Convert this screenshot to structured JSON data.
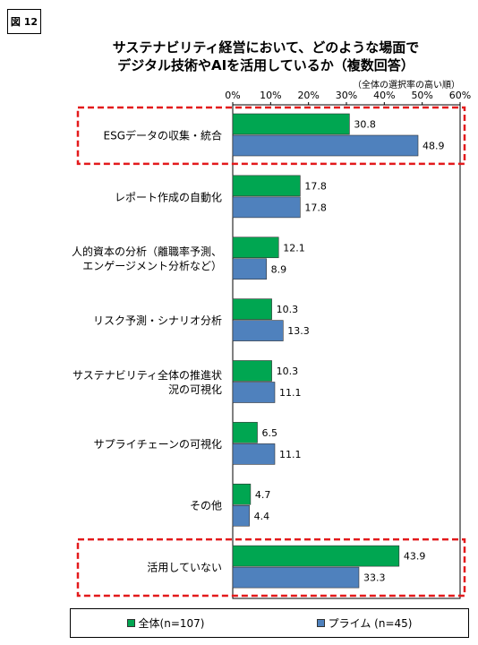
{
  "figure_label": "図 12",
  "chart_data": {
    "type": "bar",
    "orientation": "horizontal",
    "title_line1": "サステナビリティ経営において、どのような場面で",
    "title_line2": "デジタル技術やAIを活用しているか（複数回答）",
    "note": "（全体の選択率の高い順）",
    "xlim": [
      0,
      60
    ],
    "x_ticks": [
      "0%",
      "10%",
      "20%",
      "30%",
      "40%",
      "50%",
      "60%"
    ],
    "categories": [
      [
        "ESGデータの収集・統合"
      ],
      [
        "レポート作成の自動化"
      ],
      [
        "人的資本の分析（離職率予測、",
        "エンゲージメント分析など）"
      ],
      [
        "リスク予測・シナリオ分析"
      ],
      [
        "サステナビリティ全体の推進状",
        "況の可視化"
      ],
      [
        "サプライチェーンの可視化"
      ],
      [
        "その他"
      ],
      [
        "活用していない"
      ]
    ],
    "series": [
      {
        "name": "全体(n=107)",
        "color": "#00a651",
        "values": [
          30.8,
          17.8,
          12.1,
          10.3,
          10.3,
          6.5,
          4.7,
          43.9
        ]
      },
      {
        "name": "プライム (n=45)",
        "color": "#4f81bd",
        "values": [
          48.9,
          17.8,
          8.9,
          13.3,
          11.1,
          11.1,
          4.4,
          33.3
        ]
      }
    ],
    "highlighted_categories": [
      0,
      7
    ],
    "highlight_color": "#e31a1c"
  }
}
